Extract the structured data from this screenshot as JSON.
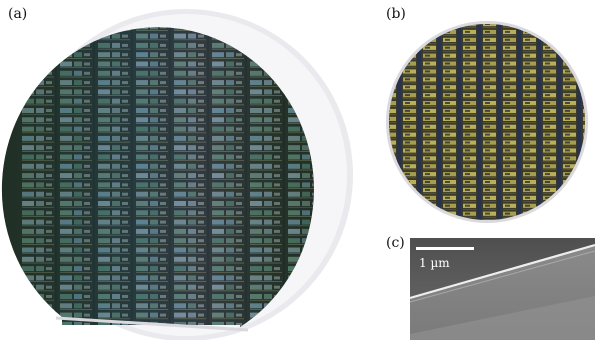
{
  "panels": [
    {
      "label": "(a)"
    },
    {
      "label": "(b)"
    },
    {
      "label": "(c)"
    }
  ],
  "scale_bar": {
    "text": "1 µm"
  },
  "colors": {
    "wafer_dark": "#121815",
    "die_green": "#4d6a5c",
    "die_teal": "#4f8890",
    "die_gold": "#c2b45a",
    "street_blue": "#28314e",
    "sem_gray": "#6e6e6e",
    "sem_edge": "#e8e8e8"
  }
}
